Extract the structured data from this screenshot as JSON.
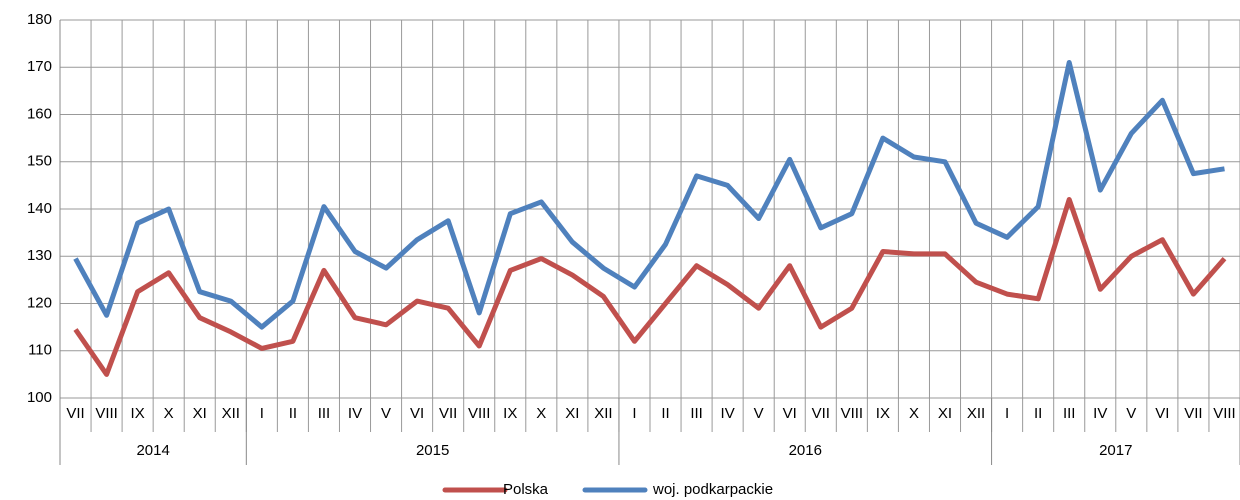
{
  "chart_data": {
    "type": "line",
    "categories": [
      "VII",
      "VIII",
      "IX",
      "X",
      "XI",
      "XII",
      "I",
      "II",
      "III",
      "IV",
      "V",
      "VI",
      "VII",
      "VIII",
      "IX",
      "X",
      "XI",
      "XII",
      "I",
      "II",
      "III",
      "IV",
      "V",
      "VI",
      "VII",
      "VIII",
      "IX",
      "X",
      "XI",
      "XII",
      "I",
      "II",
      "III",
      "IV",
      "V",
      "VI",
      "VII",
      "VIII"
    ],
    "year_groups": [
      {
        "label": "2014",
        "span": 6
      },
      {
        "label": "2015",
        "span": 12
      },
      {
        "label": "2016",
        "span": 12
      },
      {
        "label": "2017",
        "span": 8
      }
    ],
    "series": [
      {
        "name": "Polska",
        "color": "#c0504d",
        "values": [
          114.5,
          105,
          122.5,
          126.5,
          117,
          114,
          110.5,
          112,
          127,
          117,
          115.5,
          120.5,
          119,
          111,
          127,
          129.5,
          126,
          121.5,
          112,
          120,
          128,
          124,
          119,
          128,
          115,
          119,
          131,
          130.5,
          130.5,
          124.5,
          122,
          121,
          142,
          123,
          130,
          133.5,
          122,
          129.5
        ]
      },
      {
        "name": "woj. podkarpackie",
        "color": "#4f81bd",
        "values": [
          129.5,
          117.5,
          137,
          140,
          122.5,
          120.5,
          115,
          120.5,
          140.5,
          131,
          127.5,
          133.5,
          137.5,
          118,
          139,
          141.5,
          133,
          127.5,
          123.5,
          132.5,
          147,
          145,
          138,
          150.5,
          136,
          139,
          155,
          151,
          150,
          137,
          134,
          140.5,
          171,
          144,
          156,
          163,
          147.5,
          148.5
        ]
      }
    ],
    "ylim": [
      100,
      180
    ],
    "yticks": [
      100,
      110,
      120,
      130,
      140,
      150,
      160,
      170,
      180
    ],
    "grid": true,
    "legend": "bottom"
  }
}
